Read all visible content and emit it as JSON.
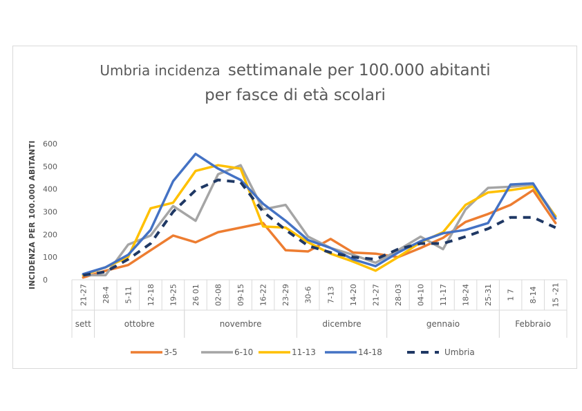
{
  "chart_data": {
    "type": "line",
    "title_line1_part1": "Umbria incidenza",
    "title_line1_part2": "settimanale per 100.000 abitanti",
    "title_line2": "per fasce di età scolari",
    "ylabel": "INCIDENZA PER 100.000 ABITANTI",
    "ylim": [
      0,
      600
    ],
    "yticks": [
      0,
      100,
      200,
      300,
      400,
      500,
      600
    ],
    "grid": false,
    "legend_position": "bottom",
    "categories": [
      "21-27",
      "28-4",
      "5-11",
      "12-18",
      "19-25",
      "26 01",
      "02-08",
      "09-15",
      "16-22",
      "23-29",
      "30-6",
      "7-13",
      "14-20",
      "21-27",
      "28-03",
      "04-10",
      "11-17",
      "18-24",
      "25-31",
      "1 7",
      "8-14",
      "15 -21"
    ],
    "months": [
      {
        "label": "sett",
        "start": 0,
        "end": 0
      },
      {
        "label": "ottobre",
        "start": 1,
        "end": 4
      },
      {
        "label": "novembre",
        "start": 5,
        "end": 9
      },
      {
        "label": "dicembre",
        "start": 10,
        "end": 13
      },
      {
        "label": "gennaio",
        "start": 14,
        "end": 18
      },
      {
        "label": "Febbraio",
        "start": 19,
        "end": 21
      }
    ],
    "series": [
      {
        "name": "3-5",
        "color": "#ED7D31",
        "dashed": false,
        "values": [
          10,
          40,
          65,
          130,
          195,
          165,
          210,
          230,
          250,
          130,
          125,
          180,
          120,
          115,
          100,
          140,
          185,
          255,
          290,
          330,
          395,
          250
        ]
      },
      {
        "name": "6-10",
        "color": "#A5A5A5",
        "dashed": false,
        "values": [
          20,
          20,
          155,
          195,
          325,
          260,
          465,
          505,
          310,
          330,
          190,
          140,
          110,
          75,
          130,
          190,
          135,
          310,
          405,
          410,
          420,
          280
        ]
      },
      {
        "name": "11-13",
        "color": "#FFC000",
        "dashed": false,
        "values": [
          20,
          55,
          100,
          315,
          340,
          480,
          505,
          490,
          235,
          230,
          165,
          115,
          80,
          40,
          100,
          165,
          210,
          330,
          385,
          395,
          410,
          280
        ]
      },
      {
        "name": "14-18",
        "color": "#4472C4",
        "dashed": false,
        "values": [
          25,
          55,
          110,
          220,
          435,
          555,
          490,
          440,
          335,
          260,
          175,
          140,
          90,
          60,
          120,
          170,
          205,
          220,
          250,
          420,
          425,
          270
        ]
      },
      {
        "name": "Umbria",
        "color": "#1F3864",
        "dashed": true,
        "values": [
          20,
          35,
          90,
          160,
          300,
          395,
          440,
          430,
          300,
          220,
          150,
          120,
          100,
          90,
          135,
          160,
          160,
          190,
          225,
          275,
          275,
          230
        ]
      }
    ]
  }
}
